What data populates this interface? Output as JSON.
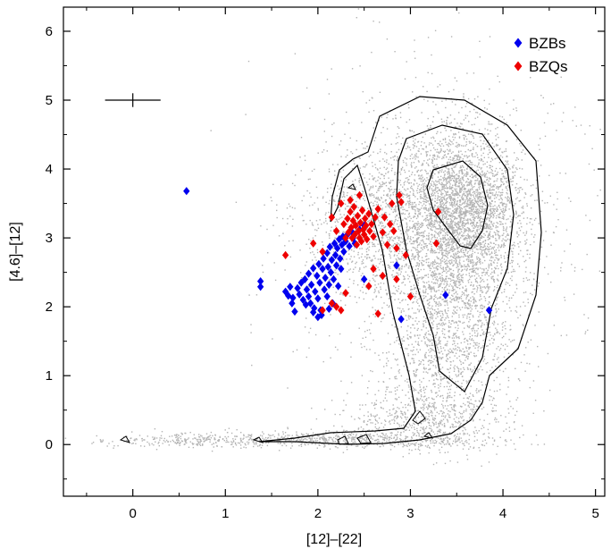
{
  "chart_data": {
    "type": "scatter",
    "xlabel": "[12]–[22]",
    "ylabel": "[4.6]–[12]",
    "xlim": [
      -0.75,
      5.1
    ],
    "ylim": [
      -0.75,
      6.35
    ],
    "xticks": [
      "0",
      "1",
      "2",
      "3",
      "4",
      "5"
    ],
    "yticks": [
      "0",
      "1",
      "2",
      "3",
      "4",
      "5",
      "6"
    ],
    "grid": false,
    "legend_position": "top-right",
    "error_bar": {
      "x": 0,
      "y": 5,
      "xerr": 0.3,
      "yerr": 0.1
    },
    "series": [
      {
        "name": "BZBs",
        "color": "#0000ee",
        "marker": "diamond",
        "points": [
          [
            0.58,
            3.68
          ],
          [
            1.38,
            2.37
          ],
          [
            1.38,
            2.29
          ],
          [
            1.65,
            2.22
          ],
          [
            1.68,
            2.16
          ],
          [
            1.7,
            2.29
          ],
          [
            1.72,
            2.05
          ],
          [
            1.75,
            1.93
          ],
          [
            1.73,
            2.13
          ],
          [
            1.78,
            2.27
          ],
          [
            1.8,
            2.18
          ],
          [
            1.82,
            2.35
          ],
          [
            1.84,
            2.1
          ],
          [
            1.86,
            2.4
          ],
          [
            1.88,
            2.25
          ],
          [
            1.9,
            2.15
          ],
          [
            1.9,
            2.48
          ],
          [
            1.92,
            2.05
          ],
          [
            1.93,
            2.32
          ],
          [
            1.95,
            2.56
          ],
          [
            1.96,
            1.98
          ],
          [
            1.97,
            2.22
          ],
          [
            1.99,
            2.45
          ],
          [
            2.0,
            2.12
          ],
          [
            2.01,
            2.62
          ],
          [
            2.02,
            2.35
          ],
          [
            2.03,
            1.95
          ],
          [
            2.04,
            1.88
          ],
          [
            2.05,
            2.55
          ],
          [
            2.06,
            2.7
          ],
          [
            2.07,
            2.25
          ],
          [
            2.08,
            2.42
          ],
          [
            2.1,
            2.78
          ],
          [
            2.1,
            2.15
          ],
          [
            2.11,
            2.58
          ],
          [
            2.12,
            2.32
          ],
          [
            2.13,
            2.87
          ],
          [
            2.14,
            2.5
          ],
          [
            2.15,
            2.68
          ],
          [
            2.16,
            2.05
          ],
          [
            2.17,
            2.4
          ],
          [
            2.18,
            2.92
          ],
          [
            2.19,
            2.75
          ],
          [
            2.2,
            2.6
          ],
          [
            2.21,
            2.85
          ],
          [
            2.22,
            2.3
          ],
          [
            2.23,
            2.98
          ],
          [
            2.24,
            2.7
          ],
          [
            2.25,
            2.55
          ],
          [
            2.26,
            2.9
          ],
          [
            2.27,
            3.02
          ],
          [
            2.28,
            2.8
          ],
          [
            2.3,
            2.95
          ],
          [
            2.32,
            3.05
          ],
          [
            2.34,
            2.88
          ],
          [
            2.36,
            3.1
          ],
          [
            2.38,
            3.0
          ],
          [
            2.4,
            2.92
          ],
          [
            2.45,
            3.12
          ],
          [
            2.5,
            3.18
          ],
          [
            2.0,
            1.85
          ],
          [
            1.95,
            1.92
          ],
          [
            2.12,
            1.97
          ],
          [
            1.87,
            2.03
          ],
          [
            2.85,
            2.6
          ],
          [
            2.9,
            1.82
          ],
          [
            3.38,
            2.17
          ],
          [
            3.85,
            1.95
          ],
          [
            2.5,
            2.4
          ]
        ]
      },
      {
        "name": "BZQs",
        "color": "#ee0000",
        "marker": "diamond",
        "points": [
          [
            1.65,
            2.75
          ],
          [
            1.95,
            2.92
          ],
          [
            2.05,
            2.8
          ],
          [
            2.15,
            3.3
          ],
          [
            2.2,
            3.1
          ],
          [
            2.25,
            3.5
          ],
          [
            2.28,
            3.2
          ],
          [
            2.3,
            3.0
          ],
          [
            2.32,
            3.28
          ],
          [
            2.33,
            3.08
          ],
          [
            2.35,
            3.38
          ],
          [
            2.36,
            3.15
          ],
          [
            2.37,
            3.0
          ],
          [
            2.38,
            3.25
          ],
          [
            2.39,
            3.45
          ],
          [
            2.4,
            3.05
          ],
          [
            2.41,
            3.18
          ],
          [
            2.42,
            2.9
          ],
          [
            2.43,
            3.32
          ],
          [
            2.44,
            3.1
          ],
          [
            2.45,
            3.0
          ],
          [
            2.46,
            3.22
          ],
          [
            2.47,
            2.95
          ],
          [
            2.48,
            3.4
          ],
          [
            2.49,
            3.12
          ],
          [
            2.5,
            3.05
          ],
          [
            2.51,
            3.28
          ],
          [
            2.52,
            3.18
          ],
          [
            2.53,
            2.98
          ],
          [
            2.55,
            3.35
          ],
          [
            2.56,
            3.1
          ],
          [
            2.58,
            3.2
          ],
          [
            2.6,
            3.02
          ],
          [
            2.62,
            3.3
          ],
          [
            2.65,
            3.42
          ],
          [
            2.7,
            3.08
          ],
          [
            2.75,
            2.9
          ],
          [
            2.78,
            3.2
          ],
          [
            2.8,
            3.5
          ],
          [
            2.82,
            3.1
          ],
          [
            2.85,
            2.85
          ],
          [
            2.9,
            3.52
          ],
          [
            2.95,
            2.75
          ],
          [
            2.6,
            2.55
          ],
          [
            2.7,
            2.45
          ],
          [
            2.55,
            2.3
          ],
          [
            2.3,
            2.2
          ],
          [
            2.25,
            1.95
          ],
          [
            2.05,
            1.95
          ],
          [
            2.15,
            2.05
          ],
          [
            2.65,
            1.9
          ],
          [
            3.0,
            2.15
          ],
          [
            2.85,
            2.4
          ],
          [
            2.88,
            3.62
          ],
          [
            3.28,
            2.92
          ],
          [
            3.3,
            3.38
          ],
          [
            2.2,
            2.0
          ],
          [
            2.45,
            3.62
          ],
          [
            2.72,
            3.3
          ],
          [
            2.35,
            3.55
          ]
        ]
      }
    ]
  }
}
